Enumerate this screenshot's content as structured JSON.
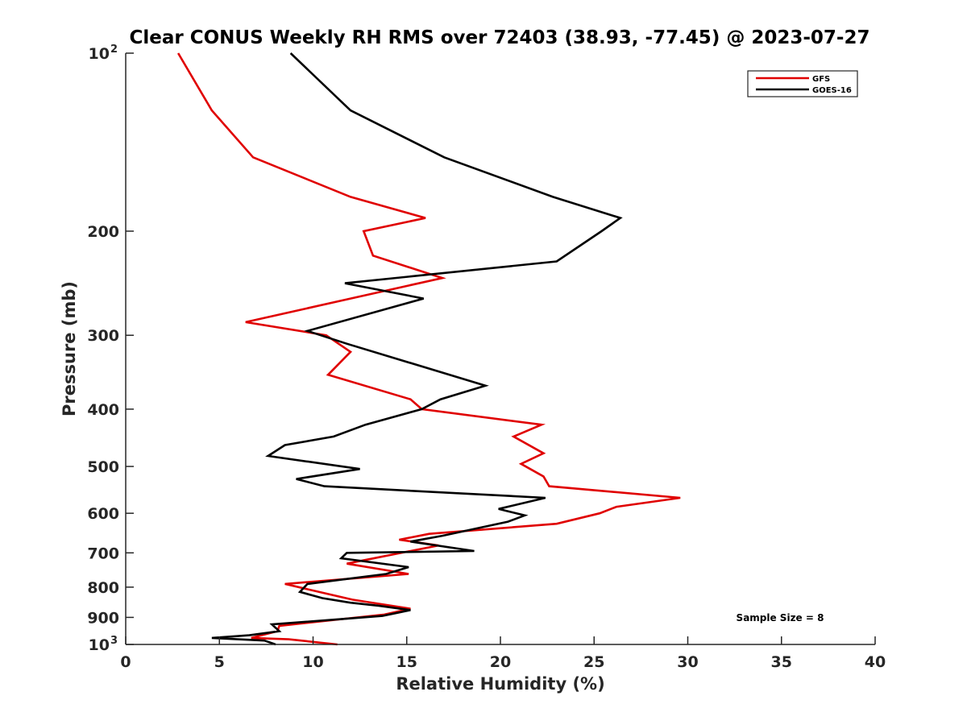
{
  "chart_data": {
    "type": "line",
    "title": "Clear CONUS Weekly RH RMS over 72403 (38.93, -77.45) @ 2023-07-27",
    "xlabel": "Relative Humidity (%)",
    "ylabel": "Pressure (mb)",
    "xlim": [
      0,
      40
    ],
    "ylim": [
      100,
      1000
    ],
    "y_scale": "log",
    "y_reversed": true,
    "x_ticks": [
      "0",
      "5",
      "10",
      "15",
      "20",
      "25",
      "30",
      "35",
      "40"
    ],
    "y_ticks": [
      {
        "value": 100,
        "label": "10",
        "sup": "2"
      },
      {
        "value": 200,
        "label": "200"
      },
      {
        "value": 300,
        "label": "300"
      },
      {
        "value": 400,
        "label": "400"
      },
      {
        "value": 500,
        "label": "500"
      },
      {
        "value": 600,
        "label": "600"
      },
      {
        "value": 700,
        "label": "700"
      },
      {
        "value": 800,
        "label": "800"
      },
      {
        "value": 900,
        "label": "900"
      },
      {
        "value": 1000,
        "label": "10",
        "sup": "3"
      }
    ],
    "grid": false,
    "legend_position": "top-right",
    "annotation": "Sample Size = 8",
    "series": [
      {
        "name": "GFS",
        "color": "#e00000",
        "points": [
          [
            2.8,
            100
          ],
          [
            4.6,
            125
          ],
          [
            6.8,
            150
          ],
          [
            12,
            175
          ],
          [
            16,
            190
          ],
          [
            12.7,
            200
          ],
          [
            13.2,
            220
          ],
          [
            16.9,
            240
          ],
          [
            12,
            260
          ],
          [
            6.4,
            285
          ],
          [
            10.7,
            300
          ],
          [
            12,
            320
          ],
          [
            10.8,
            350
          ],
          [
            15.2,
            385
          ],
          [
            15.8,
            400
          ],
          [
            22.2,
            425
          ],
          [
            20.7,
            445
          ],
          [
            22.3,
            475
          ],
          [
            21.1,
            495
          ],
          [
            22.3,
            520
          ],
          [
            22.6,
            540
          ],
          [
            29.6,
            565
          ],
          [
            26.2,
            585
          ],
          [
            25.3,
            600
          ],
          [
            23,
            625
          ],
          [
            16.2,
            650
          ],
          [
            14.6,
            665
          ],
          [
            16.7,
            680
          ],
          [
            11.8,
            730
          ],
          [
            15.1,
            760
          ],
          [
            8.5,
            790
          ],
          [
            12.1,
            840
          ],
          [
            15.2,
            870
          ],
          [
            13.8,
            890
          ],
          [
            8.2,
            930
          ],
          [
            8.1,
            950
          ],
          [
            6.7,
            975
          ],
          [
            8.7,
            980
          ],
          [
            11.3,
            1000
          ]
        ]
      },
      {
        "name": "GOES-16",
        "color": "#000000",
        "points": [
          [
            8.8,
            100
          ],
          [
            12,
            125
          ],
          [
            17,
            150
          ],
          [
            22.8,
            175
          ],
          [
            26.4,
            190
          ],
          [
            25.4,
            200
          ],
          [
            23,
            225
          ],
          [
            11.7,
            245
          ],
          [
            15.9,
            260
          ],
          [
            9.7,
            295
          ],
          [
            11.8,
            310
          ],
          [
            19.2,
            365
          ],
          [
            16.8,
            385
          ],
          [
            15.8,
            400
          ],
          [
            12.8,
            425
          ],
          [
            11.1,
            445
          ],
          [
            8.5,
            460
          ],
          [
            7.6,
            480
          ],
          [
            12.5,
            505
          ],
          [
            9.1,
            525
          ],
          [
            10.6,
            540
          ],
          [
            22.4,
            565
          ],
          [
            19.9,
            590
          ],
          [
            21.3,
            605
          ],
          [
            20.4,
            620
          ],
          [
            16.9,
            655
          ],
          [
            15.2,
            670
          ],
          [
            18.6,
            695
          ],
          [
            11.8,
            700
          ],
          [
            11.5,
            715
          ],
          [
            15.1,
            740
          ],
          [
            13.9,
            760
          ],
          [
            9.7,
            790
          ],
          [
            9.3,
            815
          ],
          [
            10.5,
            835
          ],
          [
            12,
            850
          ],
          [
            13.5,
            860
          ],
          [
            15.2,
            875
          ],
          [
            13.7,
            895
          ],
          [
            7.8,
            925
          ],
          [
            8.2,
            950
          ],
          [
            6.6,
            965
          ],
          [
            4.6,
            975
          ],
          [
            7.4,
            985
          ],
          [
            8,
            1000
          ]
        ]
      }
    ]
  }
}
